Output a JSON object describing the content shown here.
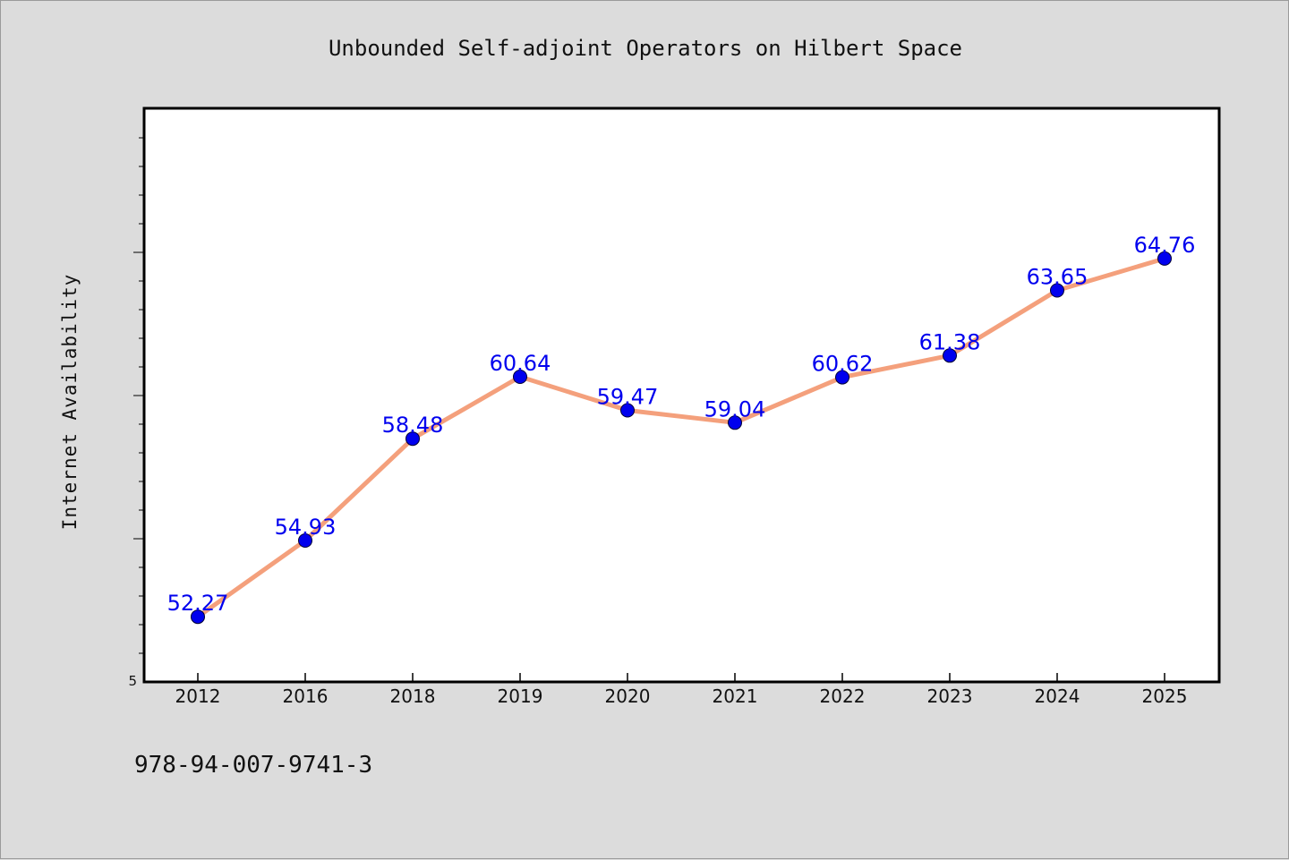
{
  "chart_data": {
    "type": "line",
    "title": "Unbounded Self-adjoint Operators on Hilbert Space",
    "xlabel": "",
    "ylabel": "Internet Availability",
    "categories": [
      "2012",
      "2016",
      "2018",
      "2019",
      "2020",
      "2021",
      "2022",
      "2023",
      "2024",
      "2025"
    ],
    "series": [
      {
        "values": [
          52.27,
          54.93,
          58.48,
          60.64,
          59.47,
          59.04,
          60.62,
          61.38,
          63.65,
          64.76
        ],
        "labels": [
          "52.27",
          "54.93",
          "58.48",
          "60.64",
          "59.47",
          "59.04",
          "60.62",
          "61.38",
          "63.65",
          "64.76"
        ]
      }
    ],
    "y_tick_labels": [
      "5"
    ],
    "ylim": [
      50,
      70
    ],
    "grid": false,
    "legend": "none",
    "colors": {
      "line": "#f4a07c",
      "marker": "#0000ee",
      "label": "#0000ee"
    }
  },
  "footer": {
    "isbn": "978-94-007-9741-3"
  }
}
